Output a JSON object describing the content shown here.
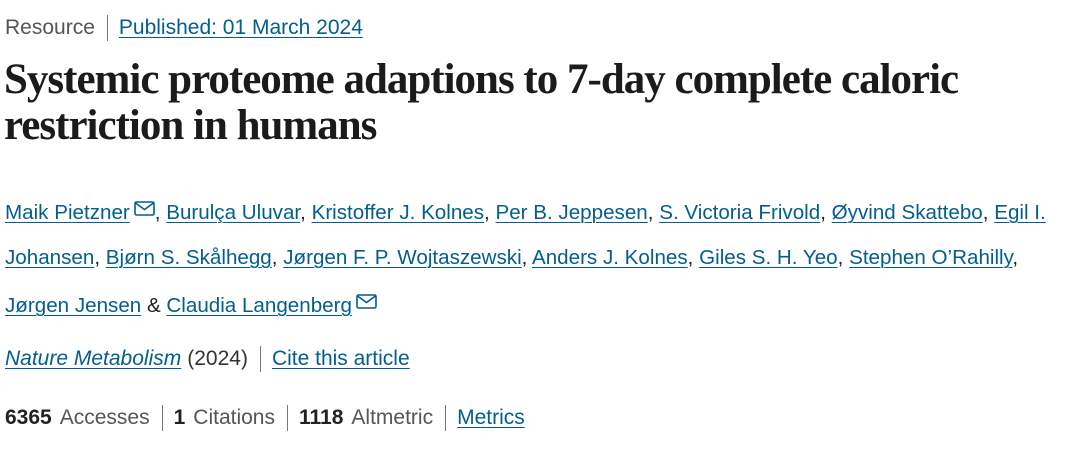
{
  "meta": {
    "article_type": "Resource",
    "published_label": "Published: 01 March 2024"
  },
  "title": "Systemic proteome adaptions to 7-day complete caloric restriction in humans",
  "authors": [
    {
      "name": "Maik Pietzner",
      "mail": true,
      "sep": ", "
    },
    {
      "name": "Burulça Uluvar",
      "mail": false,
      "sep": ", "
    },
    {
      "name": "Kristoffer J. Kolnes",
      "mail": false,
      "sep": ", "
    },
    {
      "name": "Per B. Jeppesen",
      "mail": false,
      "sep": ", "
    },
    {
      "name": "S. Victoria Frivold",
      "mail": false,
      "sep": ", "
    },
    {
      "name": "Øyvind Skattebo",
      "mail": false,
      "sep": ", "
    },
    {
      "name": "Egil I. Johansen",
      "mail": false,
      "sep": ", "
    },
    {
      "name": "Bjørn S. Skålhegg",
      "mail": false,
      "sep": ", "
    },
    {
      "name": "Jørgen F. P. Wojtaszewski",
      "mail": false,
      "sep": ", "
    },
    {
      "name": "Anders J. Kolnes",
      "mail": false,
      "sep": ", "
    },
    {
      "name": "Giles S. H. Yeo",
      "mail": false,
      "sep": ", "
    },
    {
      "name": "Stephen O’Rahilly",
      "mail": false,
      "sep": ", "
    },
    {
      "name": "Jørgen Jensen",
      "mail": false,
      "sep": " & "
    },
    {
      "name": "Claudia Langenberg",
      "mail": true,
      "sep": ""
    }
  ],
  "journal": {
    "name": "Nature Metabolism",
    "year": "(2024)",
    "cite_label": "Cite this article"
  },
  "metrics": {
    "accesses_value": "6365",
    "accesses_label": "Accesses",
    "citations_value": "1",
    "citations_label": "Citations",
    "altmetric_value": "1118",
    "altmetric_label": "Altmetric",
    "metrics_link": "Metrics"
  },
  "colors": {
    "link": "#025e8d",
    "title": "#1b1b1b",
    "text": "#222222",
    "muted": "#555555"
  },
  "icons": {
    "author_contact": "mail-icon"
  }
}
